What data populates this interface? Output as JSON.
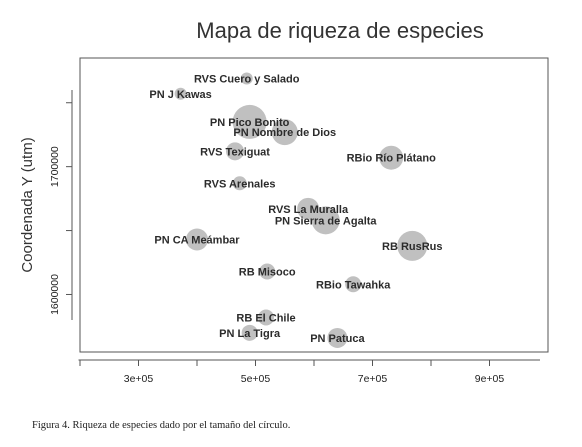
{
  "chart_data": {
    "type": "scatter",
    "title": "Mapa de riqueza de especies",
    "xlabel": "",
    "ylabel": "Coordenada Y (utm)",
    "xlim": [
      200000,
      1000000
    ],
    "ylim": [
      1555000,
      1785000
    ],
    "x_ticks": [
      300000,
      500000,
      700000,
      900000
    ],
    "x_tick_labels": [
      "3e+05",
      "5e+05",
      "7e+05",
      "9e+05"
    ],
    "y_ticks": [
      1600000,
      1700000
    ],
    "y_tick_labels": [
      "1600000",
      "1700000"
    ],
    "grid": false,
    "bubble_color": "#c0c0c0",
    "points": [
      {
        "label": "RVS Cuero y Salado",
        "x": 485000,
        "y": 1769000,
        "size": 6
      },
      {
        "label": "PN J Kawas",
        "x": 372000,
        "y": 1757000,
        "size": 6
      },
      {
        "label": "PN Pico Bonito",
        "x": 490000,
        "y": 1735000,
        "size": 17
      },
      {
        "label": "PN Nombre de Dios",
        "x": 550000,
        "y": 1727000,
        "size": 13
      },
      {
        "label": "RVS Texiguat",
        "x": 465000,
        "y": 1712000,
        "size": 9
      },
      {
        "label": "RBio Río Plátano",
        "x": 732000,
        "y": 1707000,
        "size": 12
      },
      {
        "label": "RVS Arenales",
        "x": 473000,
        "y": 1687000,
        "size": 7
      },
      {
        "label": "RVS La Muralla",
        "x": 590000,
        "y": 1667000,
        "size": 11
      },
      {
        "label": "PN Sierra de Agalta",
        "x": 620000,
        "y": 1658000,
        "size": 14
      },
      {
        "label": "PN CA Meámbar",
        "x": 400000,
        "y": 1643000,
        "size": 11
      },
      {
        "label": "RB RusRus",
        "x": 768000,
        "y": 1638000,
        "size": 15
      },
      {
        "label": "RB Misoco",
        "x": 520000,
        "y": 1618000,
        "size": 8
      },
      {
        "label": "RBio Tawahka",
        "x": 667000,
        "y": 1608000,
        "size": 8
      },
      {
        "label": "RB El Chile",
        "x": 518000,
        "y": 1582000,
        "size": 8
      },
      {
        "label": "PN La Tigra",
        "x": 490000,
        "y": 1570000,
        "size": 8
      },
      {
        "label": "PN Patuca",
        "x": 640000,
        "y": 1566000,
        "size": 10
      }
    ]
  },
  "caption": "Figura 4. Riqueza de especies dado por el tamaño del círculo."
}
